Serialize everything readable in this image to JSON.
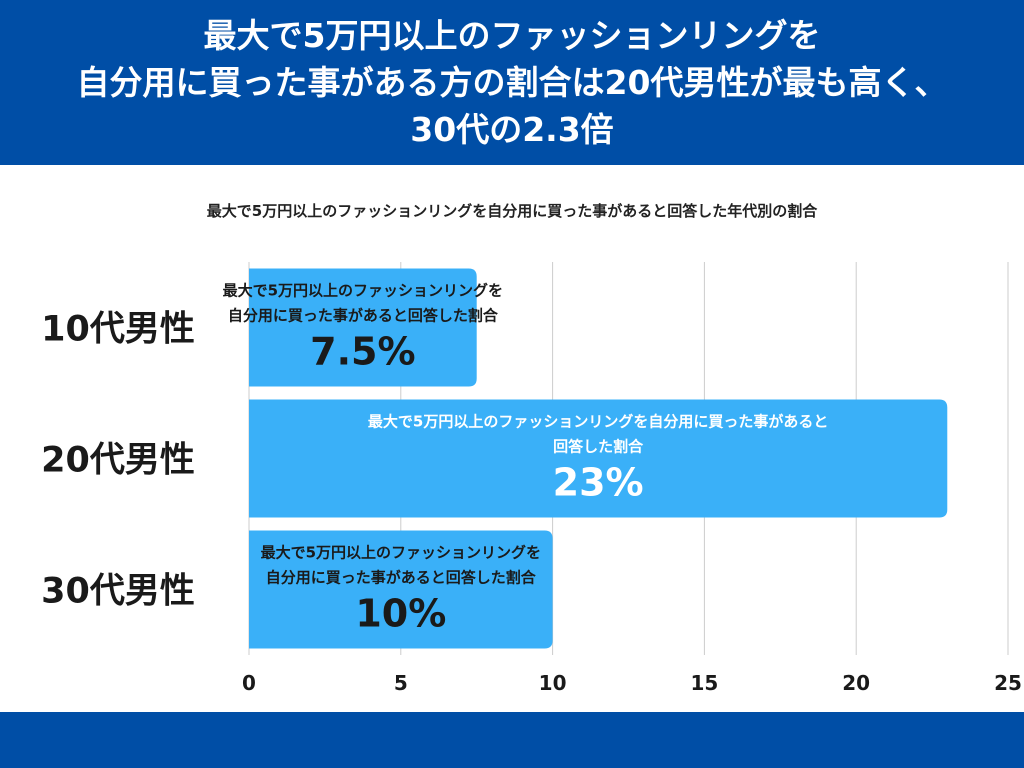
{
  "header": {
    "title_lines": [
      "最大で5万円以上のファッションリングを",
      "自分用に買った事がある方の割合は20代男性が最も高く、",
      "30代の2.3倍"
    ]
  },
  "colors": {
    "header_bg": "#004EA6",
    "bar": "#3AB0F8",
    "grid": "#CCCCCC",
    "text_dark": "#1A1A1A"
  },
  "chart_data": {
    "type": "bar",
    "orientation": "horizontal",
    "title": "最大で5万円以上のファッションリングを自分用に買った事があると回答した年代別の割合",
    "categories": [
      "10代男性",
      "20代男性",
      "30代男性"
    ],
    "values": [
      7.5,
      23,
      10
    ],
    "value_labels": [
      "7.5%",
      "23%",
      "10%"
    ],
    "bar_caption_lines": [
      [
        "最大で5万円以上のファッションリングを",
        "自分用に買った事があると回答した割合"
      ],
      [
        "最大で5万円以上のファッションリングを自分用に買った事があると",
        "回答した割合"
      ],
      [
        "最大で5万円以上のファッションリングを",
        "自分用に買った事があると回答した割合"
      ]
    ],
    "xlim": [
      0,
      25
    ],
    "xticks": [
      0,
      5,
      10,
      15,
      20,
      25
    ],
    "grid": true,
    "xlabel": "",
    "ylabel": ""
  }
}
